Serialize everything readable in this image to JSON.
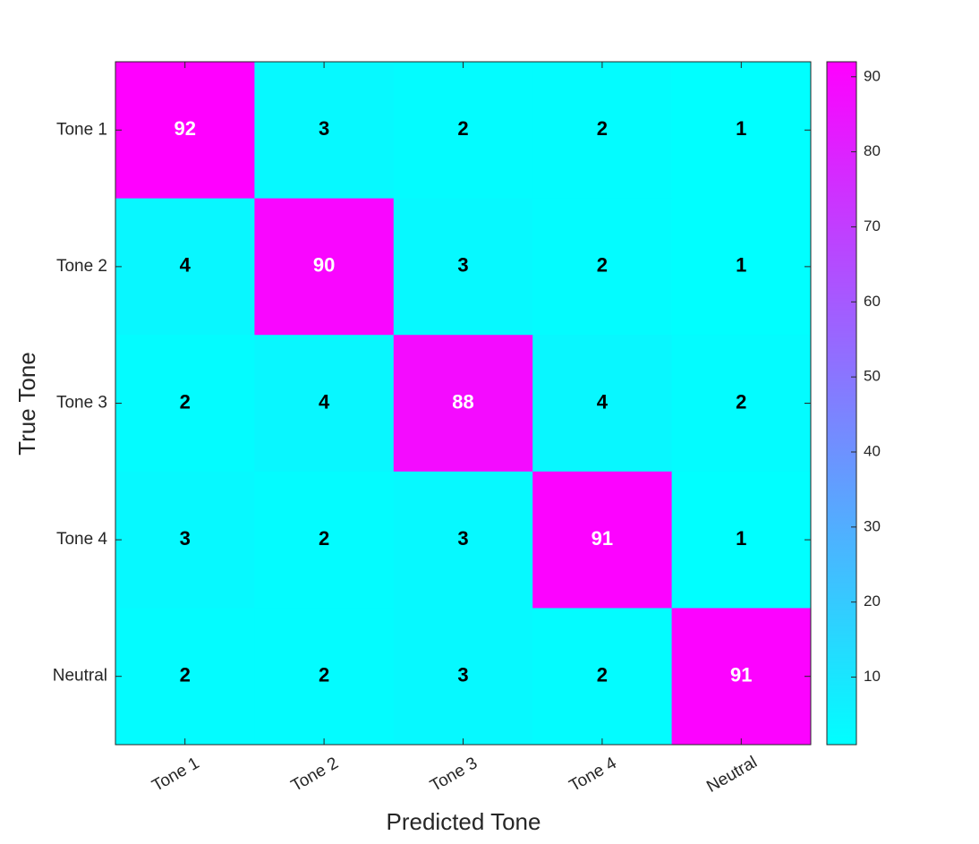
{
  "chart_data": {
    "type": "heatmap",
    "x_categories": [
      "Tone 1",
      "Tone 2",
      "Tone 3",
      "Tone 4",
      "Neutral"
    ],
    "y_categories": [
      "Tone 1",
      "Tone 2",
      "Tone 3",
      "Tone 4",
      "Neutral"
    ],
    "values": [
      [
        92,
        3,
        2,
        2,
        1
      ],
      [
        4,
        90,
        3,
        2,
        1
      ],
      [
        2,
        4,
        88,
        4,
        2
      ],
      [
        3,
        2,
        3,
        91,
        1
      ],
      [
        2,
        2,
        3,
        2,
        91
      ]
    ],
    "xlabel": "Predicted Tone",
    "ylabel": "True Tone",
    "colormap": [
      "#00ffff",
      "#ff00ff"
    ],
    "clim": [
      1,
      92
    ],
    "colorbar_ticks": [
      10,
      20,
      30,
      40,
      50,
      60,
      70,
      80,
      90
    ]
  }
}
